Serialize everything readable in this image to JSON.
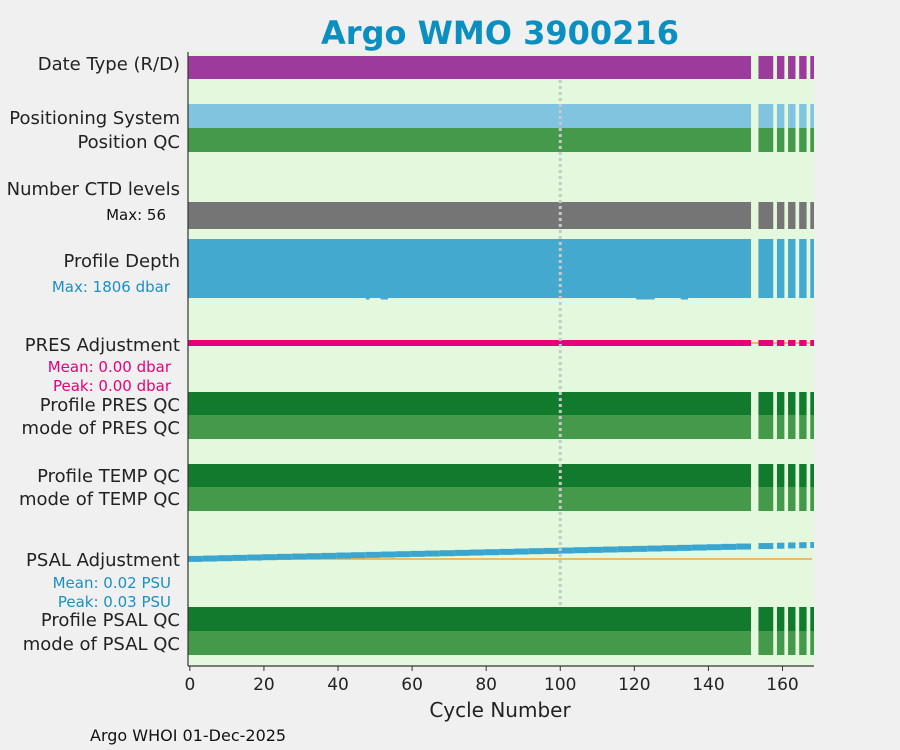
{
  "chart_data": {
    "type": "bar",
    "title": "Argo WMO 3900216",
    "xlabel": "Cycle Number",
    "xlim": [
      -0.5,
      168.5
    ],
    "xticks": [
      0,
      20,
      40,
      60,
      80,
      100,
      120,
      140,
      160
    ],
    "footer": "Argo WHOI 01-Dec-2025",
    "reference_cycle": 100,
    "cycle_segments": [
      [
        0,
        151
      ],
      [
        154,
        157
      ],
      [
        159,
        160
      ],
      [
        162,
        163
      ],
      [
        165,
        166
      ],
      [
        168,
        168
      ]
    ],
    "rows": {
      "date_type": {
        "label": "Date Type (R/D)"
      },
      "positioning": {
        "label": "Positioning System"
      },
      "position_qc": {
        "label": "Position QC"
      },
      "ctd_levels": {
        "label": "Number CTD levels",
        "annotation": "Max: 56"
      },
      "profile_depth": {
        "label": "Profile Depth",
        "annotation": "Max: 1806 dbar"
      },
      "pres_adjustment": {
        "label": "PRES Adjustment",
        "mean": "Mean: 0.00 dbar",
        "peak": "Peak: 0.00 dbar"
      },
      "profile_pres_qc": {
        "label": "Profile PRES QC"
      },
      "mode_pres_qc": {
        "label": "mode of PRES QC"
      },
      "profile_temp_qc": {
        "label": "Profile TEMP QC"
      },
      "mode_temp_qc": {
        "label": "mode of TEMP QC"
      },
      "psal_adjustment": {
        "label": "PSAL Adjustment",
        "mean": "Mean: 0.02 PSU",
        "peak": "Peak: 0.03 PSU",
        "start_value": 0.0,
        "end_value": 0.03
      },
      "profile_psal_qc": {
        "label": "Profile PSAL QC"
      },
      "mode_psal_qc": {
        "label": "mode of PSAL QC"
      }
    },
    "colors": {
      "title": "#0a8fc0",
      "background": "#e4f8de",
      "date_type": "#9b3b9b",
      "positioning": "#80c4e0",
      "qc_light": "#44994a",
      "qc_dark": "#127a2c",
      "ctd": "#757575",
      "depth": "#43a9cf",
      "pres": "#e6007a",
      "psal": "#3aa6d0",
      "zero_line": "#f0a830",
      "ref_line": "#c8c8c8",
      "depth_text": "#1a90c4",
      "pres_text": "#e6007a",
      "psal_text": "#1a90c4"
    }
  }
}
